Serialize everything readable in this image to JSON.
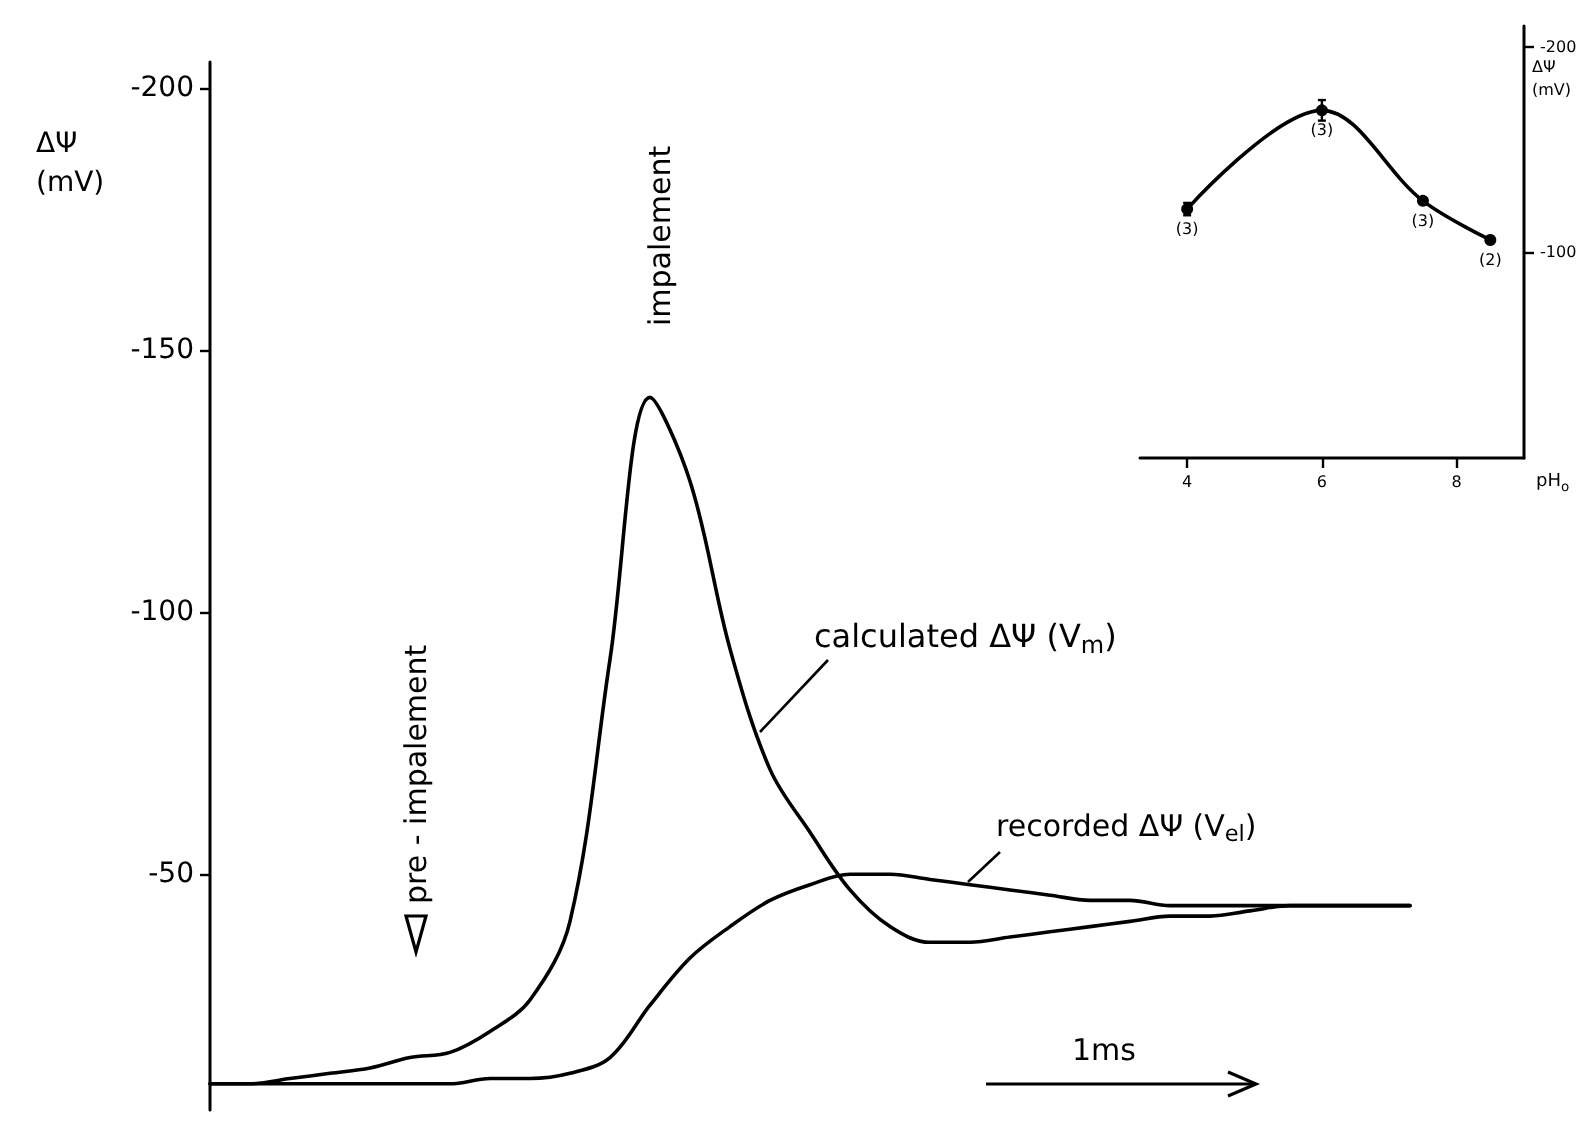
{
  "chart_data": [
    {
      "type": "line",
      "ylabel": "ΔΨ (mV)",
      "categories": [
        null,
        null,
        null,
        null,
        null,
        null,
        null,
        null,
        null,
        null,
        null,
        null,
        null,
        null,
        null,
        null,
        null,
        null,
        null,
        null,
        null,
        null,
        null,
        null,
        null,
        null,
        null,
        null,
        null,
        null,
        null
      ],
      "series": [
        {
          "name": "calculated ΔΨ (V$_{m}$)",
          "color": "#000000",
          "values": [
            -10,
            -10,
            -11,
            -12,
            -13,
            -15,
            -16,
            -20,
            -26,
            -41,
            -91,
            -141,
            -125,
            -93,
            -70,
            -58,
            -47,
            -40,
            -37,
            -37,
            -38,
            -39,
            -40,
            -41,
            -42,
            -42,
            -43,
            -44,
            -44,
            -44,
            -44
          ]
        },
        {
          "name": "recorded ΔΨ (V$_{el}$)",
          "color": "#000000",
          "values": [
            -10,
            -10,
            -10,
            -10,
            -10,
            -10,
            -10,
            -11,
            -11,
            -12,
            -15,
            -25,
            -34,
            -40,
            -45,
            -48,
            -50,
            -50,
            -49,
            -48,
            -47,
            -46,
            -45,
            -45,
            -44,
            -44,
            -44,
            -44,
            -44,
            -44,
            -44
          ]
        }
      ],
      "ylim": [
        -5,
        -205
      ],
      "yticks": [
        -200,
        -150,
        -100,
        -50
      ],
      "tick_labels": "y",
      "annotations": [
        "impalement",
        "pre - impalement",
        "1ms"
      ]
    },
    {
      "type": "line",
      "xlabel": "pH$_{o}$",
      "ylabel": "ΔΨ (mV)",
      "x": [
        4,
        6,
        7.5,
        8.5
      ],
      "series": [
        {
          "color": "#000000",
          "values": [
            -121,
            -169,
            -125,
            -106
          ],
          "errors": [
            3,
            5,
            null,
            null
          ]
        }
      ],
      "marker": "circle",
      "xlim": [
        3.3,
        9
      ],
      "xticks": [
        4,
        6,
        8
      ],
      "ylim": [
        0,
        -210
      ],
      "yticks": [
        -200,
        -100
      ],
      "annotations": [
        {
          "text": "(3)",
          "x": 4,
          "y": -121
        },
        {
          "text": "(3)",
          "x": 6,
          "y": -169
        },
        {
          "text": "(3)",
          "x": 7.5,
          "y": -125
        },
        {
          "text": "(2)",
          "x": 8.5,
          "y": -106
        }
      ]
    }
  ]
}
